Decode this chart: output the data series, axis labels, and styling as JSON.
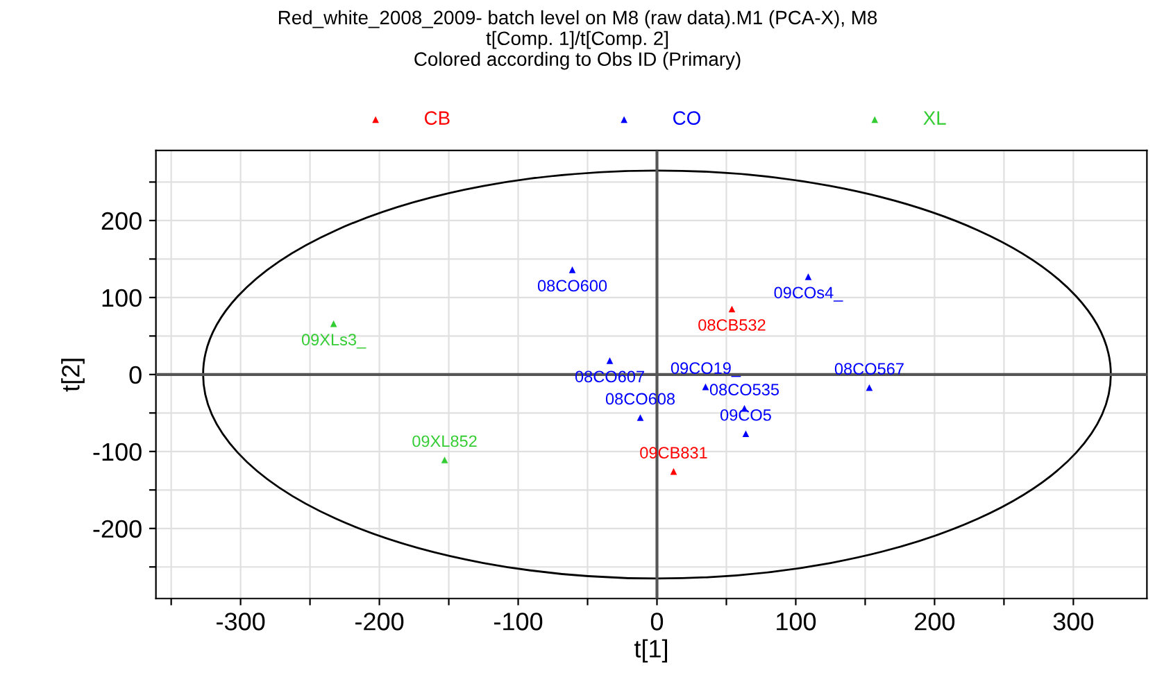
{
  "chart_data": {
    "type": "scatter",
    "title": "Red_white_2008_2009- batch level on M8 (raw data).M1 (PCA-X), M8\nt[Comp. 1]/t[Comp. 2]\nColored according to Obs ID (Primary)",
    "xlabel": "t[1]",
    "ylabel": "t[2]",
    "xlim": [
      -361,
      353
    ],
    "ylim": [
      -291,
      291
    ],
    "xticks": [
      {
        "value": -350,
        "label": null
      },
      -300,
      {
        "value": -250,
        "label": null
      },
      -200,
      {
        "value": -150,
        "label": null
      },
      -100,
      {
        "value": -50,
        "label": null
      },
      0,
      {
        "value": 50,
        "label": null
      },
      100,
      {
        "value": 150,
        "label": null
      },
      200,
      {
        "value": 250,
        "label": null
      },
      300
    ],
    "yticks": [
      {
        "value": -250,
        "label": null
      },
      -200,
      {
        "value": -150,
        "label": null
      },
      -100,
      {
        "value": -50,
        "label": null
      },
      0,
      {
        "value": 50,
        "label": null
      },
      100,
      {
        "value": 150,
        "label": null
      },
      200,
      {
        "value": 250,
        "label": null
      }
    ],
    "grid": true,
    "legend": "top",
    "marker": "triangle",
    "series": [
      {
        "name": "CB",
        "color": "#ff0000",
        "x": [
          54,
          12
        ],
        "values": [
          85,
          -126
        ],
        "value_labels": [
          "08CB532",
          "09CB831"
        ]
      },
      {
        "name": "CO",
        "color": "#0000ff",
        "x": [
          -61,
          -34,
          -12,
          35,
          63,
          64,
          109,
          153
        ],
        "values": [
          136,
          18,
          -56,
          -16,
          -44,
          -77,
          127,
          -17
        ],
        "value_labels": [
          "08CO600",
          "08CO607",
          "08CO608",
          "09CO19_",
          "08CO535",
          "09CO5",
          "09COs4_",
          "08CO567"
        ]
      },
      {
        "name": "XL",
        "color": "#33cc33",
        "x": [
          -233,
          -153
        ],
        "values": [
          66,
          -111
        ],
        "value_labels": [
          "09XLs3_",
          "09XL852"
        ]
      }
    ]
  }
}
